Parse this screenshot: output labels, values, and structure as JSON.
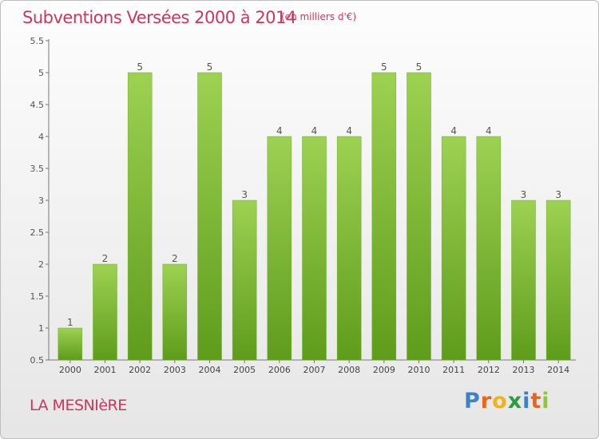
{
  "chart_data": {
    "type": "bar",
    "title": "Subventions Versées 2000 à 2014",
    "subtitle": "(en milliers d'€)",
    "categories": [
      "2000",
      "2001",
      "2002",
      "2003",
      "2004",
      "2005",
      "2006",
      "2007",
      "2008",
      "2009",
      "2010",
      "2011",
      "2012",
      "2013",
      "2014"
    ],
    "values": [
      1,
      2,
      5,
      2,
      5,
      3,
      4,
      4,
      4,
      5,
      5,
      4,
      4,
      3,
      3
    ],
    "yticks": [
      "0.5",
      "1",
      "1.5",
      "2",
      "2.5",
      "3",
      "3.5",
      "4",
      "4.5",
      "5",
      "5.5"
    ],
    "ylim": [
      0.5,
      5.5
    ],
    "grid": false,
    "bar_color_top": "#9dd152",
    "bar_color_bottom": "#5f9c1b"
  },
  "footer": {
    "place": "LA MESNIèRE",
    "logo": [
      "P",
      "r",
      "o",
      "x",
      "i",
      "t",
      "i"
    ],
    "logo_colors": [
      "#3d83c4",
      "#e9651e",
      "#f0b21c",
      "#2f9a3f",
      "#3d83c4",
      "#e9651e",
      "#8ec63f"
    ]
  }
}
